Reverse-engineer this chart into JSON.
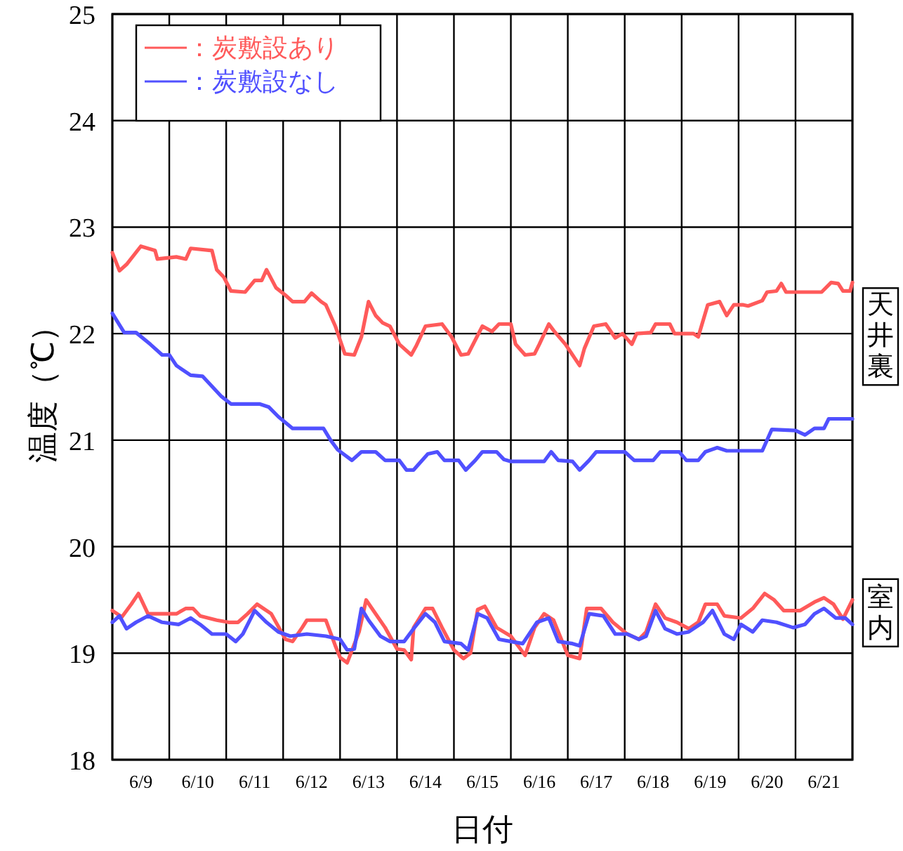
{
  "chart_data": {
    "type": "line",
    "ylabel": "温度（℃）",
    "xlabel": "日付",
    "xlim": [
      "--06-09",
      "--06-22"
    ],
    "ylim": [
      18,
      25
    ],
    "yticks": [
      18,
      19,
      20,
      21,
      22,
      23,
      24,
      25
    ],
    "xticks": [
      {
        "value": "--06-09",
        "label": null
      },
      {
        "value": "--06-10",
        "label": null
      },
      {
        "value": "--06-11",
        "label": null
      },
      {
        "value": "--06-12",
        "label": null
      },
      {
        "value": "--06-13",
        "label": null
      },
      {
        "value": "--06-14",
        "label": null
      },
      {
        "value": "--06-15",
        "label": null
      },
      {
        "value": "--06-16",
        "label": null
      },
      {
        "value": "--06-17",
        "label": null
      },
      {
        "value": "--06-18",
        "label": null
      },
      {
        "value": "--06-19",
        "label": null
      },
      {
        "value": "--06-20",
        "label": null
      },
      {
        "value": "--06-21",
        "label": null
      },
      {
        "value": "--06-22",
        "label": null
      },
      {
        "value": "--06-09T12:00",
        "label": "6/9"
      },
      {
        "value": "--06-10T12:00",
        "label": "6/10"
      },
      {
        "value": "--06-11T12:00",
        "label": "6/11"
      },
      {
        "value": "--06-12T12:00",
        "label": "6/12"
      },
      {
        "value": "--06-13T12:00",
        "label": "6/13"
      },
      {
        "value": "--06-14T12:00",
        "label": "6/14"
      },
      {
        "value": "--06-15T12:00",
        "label": "6/15"
      },
      {
        "value": "--06-16T12:00",
        "label": "6/16"
      },
      {
        "value": "--06-17T12:00",
        "label": "6/17"
      },
      {
        "value": "--06-18T12:00",
        "label": "6/18"
      },
      {
        "value": "--06-19T12:00",
        "label": "6/19"
      },
      {
        "value": "--06-20T12:00",
        "label": "6/20"
      },
      {
        "value": "--06-21T12:00",
        "label": "6/21"
      }
    ],
    "grid": true,
    "legend": "top left",
    "line_style": "solid",
    "marker": "none",
    "annotations": [
      "天井裏",
      "室内"
    ],
    "series": [
      {
        "name": "：炭敷設あり",
        "color": "#ff5a5a",
        "x": [
          "--06-09T00:00",
          "--06-09T03:00",
          "--06-09T06:00",
          "--06-09T12:00",
          "--06-09T18:00",
          "--06-09T19:00",
          "--06-10T03:00",
          "--06-10T07:00",
          "--06-10T09:00",
          "--06-10T18:00",
          "--06-10T20:00",
          "--06-10T23:00",
          "--06-11T02:00",
          "--06-11T08:00",
          "--06-11T12:00",
          "--06-11T15:00",
          "--06-11T17:00",
          "--06-11T21:00",
          "--06-12T01:00",
          "--06-12T04:00",
          "--06-12T09:00",
          "--06-12T12:00",
          "--06-12T16:00",
          "--06-12T18:00",
          "--06-12T22:00",
          "--06-13T02:00",
          "--06-13T06:00",
          "--06-13T09:00",
          "--06-13T12:00",
          "--06-13T15:00",
          "--06-13T18:00",
          "--06-13T21:00",
          "--06-14T01:00",
          "--06-14T06:00",
          "--06-14T08:00",
          "--06-14T12:00",
          "--06-14T19:00",
          "--06-14T23:00",
          "--06-15T03:00",
          "--06-15T06:00",
          "--06-15T12:00",
          "--06-15T16:00",
          "--06-15T19:00",
          "--06-16T00:00",
          "--06-16T02:00",
          "--06-16T06:00",
          "--06-16T10:00",
          "--06-16T12:00",
          "--06-16T16:00",
          "--06-16T18:00",
          "--06-16T23:00",
          "--06-17T02:00",
          "--06-17T05:00",
          "--06-17T07:00",
          "--06-17T11:00",
          "--06-17T16:00",
          "--06-17T20:00",
          "--06-17T23:00",
          "--06-18T03:00",
          "--06-18T05:00",
          "--06-18T11:00",
          "--06-18T13:00",
          "--06-18T19:00",
          "--06-18T21:00",
          "--06-19T05:00",
          "--06-19T07:00",
          "--06-19T11:00",
          "--06-19T16:00",
          "--06-19T19:00",
          "--06-19T22:00",
          "--06-20T02:00",
          "--06-20T04:00",
          "--06-20T10:00",
          "--06-20T12:00",
          "--06-20T16:00",
          "--06-20T18:00",
          "--06-20T20:00",
          "--06-21T11:00",
          "--06-21T15:00",
          "--06-21T18:00",
          "--06-21T20:00",
          "--06-21T23:00",
          "--06-22T00:00"
        ],
        "values": [
          22.76,
          22.59,
          22.65,
          22.82,
          22.78,
          22.7,
          22.72,
          22.7,
          22.8,
          22.78,
          22.6,
          22.53,
          22.4,
          22.39,
          22.5,
          22.5,
          22.6,
          22.43,
          22.36,
          22.3,
          22.3,
          22.38,
          22.3,
          22.27,
          22.07,
          21.81,
          21.8,
          21.97,
          22.3,
          22.17,
          22.1,
          22.07,
          21.9,
          21.8,
          21.88,
          22.07,
          22.09,
          21.97,
          21.8,
          21.81,
          22.07,
          22.02,
          22.09,
          22.09,
          21.9,
          21.8,
          21.81,
          21.9,
          22.09,
          22.03,
          21.9,
          21.8,
          21.7,
          21.86,
          22.07,
          22.09,
          21.96,
          22.0,
          21.9,
          22.0,
          22.01,
          22.09,
          22.09,
          22.0,
          22.0,
          21.97,
          22.27,
          22.3,
          22.17,
          22.27,
          22.27,
          22.26,
          22.31,
          22.39,
          22.4,
          22.47,
          22.39,
          22.39,
          22.48,
          22.47,
          22.4,
          22.4,
          22.48
        ]
      },
      {
        "name": "：炭敷設なし",
        "color": "#5050ff",
        "x": [
          "--06-09T00:00",
          "--06-09T05:00",
          "--06-09T10:00",
          "--06-09T16:00",
          "--06-09T21:00",
          "--06-10T00:00",
          "--06-10T03:00",
          "--06-10T09:00",
          "--06-10T14:00",
          "--06-10T22:00",
          "--06-11T02:00",
          "--06-11T14:00",
          "--06-11T18:00",
          "--06-11T22:00",
          "--06-12T04:00",
          "--06-12T17:00",
          "--06-12T20:00",
          "--06-12T23:00",
          "--06-13T05:00",
          "--06-13T09:00",
          "--06-13T15:00",
          "--06-13T19:00",
          "--06-14T01:00",
          "--06-14T04:00",
          "--06-14T07:00",
          "--06-14T13:00",
          "--06-14T17:00",
          "--06-14T20:00",
          "--06-15T02:00",
          "--06-15T05:00",
          "--06-15T09:00",
          "--06-15T12:00",
          "--06-15T18:00",
          "--06-15T21:00",
          "--06-16T00:00",
          "--06-16T14:00",
          "--06-16T17:00",
          "--06-16T20:00",
          "--06-17T02:00",
          "--06-17T05:00",
          "--06-17T09:00",
          "--06-17T12:00",
          "--06-18T00:00",
          "--06-18T04:00",
          "--06-18T12:00",
          "--06-18T15:00",
          "--06-18T23:00",
          "--06-19T02:00",
          "--06-19T07:00",
          "--06-19T10:00",
          "--06-19T15:00",
          "--06-19T19:00",
          "--06-20T10:00",
          "--06-20T14:00",
          "--06-21T00:00",
          "--06-21T04:00",
          "--06-21T08:00",
          "--06-21T12:00",
          "--06-21T14:00",
          "--06-22T00:00"
        ],
        "values": [
          22.19,
          22.01,
          22.01,
          21.9,
          21.8,
          21.8,
          21.7,
          21.61,
          21.6,
          21.41,
          21.34,
          21.34,
          21.31,
          21.22,
          21.11,
          21.11,
          21.0,
          20.91,
          20.81,
          20.89,
          20.89,
          20.81,
          20.81,
          20.72,
          20.72,
          20.87,
          20.89,
          20.81,
          20.81,
          20.72,
          20.81,
          20.89,
          20.89,
          20.82,
          20.8,
          20.8,
          20.89,
          20.81,
          20.8,
          20.72,
          20.81,
          20.89,
          20.89,
          20.81,
          20.81,
          20.89,
          20.89,
          20.81,
          20.81,
          20.89,
          20.93,
          20.9,
          20.9,
          21.1,
          21.09,
          21.05,
          21.11,
          21.11,
          21.2,
          21.2
        ]
      },
      {
        "color": "#ff5a5a",
        "x": [
          "--06-09T00:00",
          "--06-09T04:00",
          "--06-09T08:00",
          "--06-09T11:00",
          "--06-09T15:00",
          "--06-09T21:00",
          "--06-10T03:00",
          "--06-10T07:00",
          "--06-10T10:00",
          "--06-10T13:00",
          "--06-10T20:00",
          "--06-11T01:00",
          "--06-11T05:00",
          "--06-11T09:00",
          "--06-11T13:00",
          "--06-11T19:00",
          "--06-12T01:00",
          "--06-12T04:00",
          "--06-12T08:00",
          "--06-12T10:00",
          "--06-12T18:00",
          "--06-12T22:00",
          "--06-13T00:00",
          "--06-13T03:00",
          "--06-13T08:00",
          "--06-13T11:00",
          "--06-13T15:00",
          "--06-13T19:00",
          "--06-14T00:00",
          "--06-14T03:00",
          "--06-14T06:00",
          "--06-14T07:00",
          "--06-14T12:00",
          "--06-14T15:00",
          "--06-14T19:00",
          "--06-15T00:00",
          "--06-15T04:00",
          "--06-15T07:00",
          "--06-15T10:00",
          "--06-15T13:00",
          "--06-15T18:00",
          "--06-16T00:00",
          "--06-16T06:00",
          "--06-16T10:00",
          "--06-16T14:00",
          "--06-16T18:00",
          "--06-17T00:00",
          "--06-17T05:00",
          "--06-17T08:00",
          "--06-17T14:00",
          "--06-17T19:00",
          "--06-18T01:00",
          "--06-18T06:00",
          "--06-18T09:00",
          "--06-18T13:00",
          "--06-18T17:00",
          "--06-18T22:00",
          "--06-19T03:00",
          "--06-19T07:00",
          "--06-19T10:00",
          "--06-19T15:00",
          "--06-19T18:00",
          "--06-20T01:00",
          "--06-20T06:00",
          "--06-20T11:00",
          "--06-20T15:00",
          "--06-20T19:00",
          "--06-21T02:00",
          "--06-21T08:00",
          "--06-21T12:00",
          "--06-21T16:00",
          "--06-21T20:00",
          "--06-22T00:00"
        ],
        "values": [
          19.4,
          19.34,
          19.46,
          19.56,
          19.37,
          19.37,
          19.37,
          19.42,
          19.42,
          19.35,
          19.31,
          19.29,
          19.29,
          19.37,
          19.46,
          19.37,
          19.13,
          19.11,
          19.24,
          19.31,
          19.31,
          19.07,
          18.96,
          18.91,
          19.2,
          19.5,
          19.37,
          19.24,
          19.04,
          19.03,
          18.94,
          19.24,
          19.42,
          19.42,
          19.24,
          19.03,
          18.95,
          19.0,
          19.41,
          19.44,
          19.24,
          19.16,
          18.98,
          19.24,
          19.37,
          19.31,
          18.98,
          18.95,
          19.42,
          19.42,
          19.29,
          19.18,
          19.13,
          19.2,
          19.46,
          19.33,
          19.29,
          19.23,
          19.29,
          19.46,
          19.46,
          19.35,
          19.33,
          19.42,
          19.56,
          19.5,
          19.4,
          19.4,
          19.48,
          19.52,
          19.46,
          19.32,
          19.5
        ]
      },
      {
        "color": "#5050ff",
        "x": [
          "--06-09T00:00",
          "--06-09T03:00",
          "--06-09T06:00",
          "--06-09T10:00",
          "--06-09T15:00",
          "--06-09T21:00",
          "--06-10T04:00",
          "--06-10T09:00",
          "--06-10T13:00",
          "--06-10T18:00",
          "--06-11T00:00",
          "--06-11T04:00",
          "--06-11T07:00",
          "--06-11T12:00",
          "--06-11T17:00",
          "--06-11T22:00",
          "--06-12T03:00",
          "--06-12T10:00",
          "--06-12T18:00",
          "--06-13T00:00",
          "--06-13T03:00",
          "--06-13T06:00",
          "--06-13T09:00",
          "--06-13T12:00",
          "--06-13T17:00",
          "--06-13T21:00",
          "--06-14T03:00",
          "--06-14T07:00",
          "--06-14T12:00",
          "--06-14T16:00",
          "--06-14T20:00",
          "--06-15T03:00",
          "--06-15T06:00",
          "--06-15T10:00",
          "--06-15T14:00",
          "--06-15T19:00",
          "--06-16T00:00",
          "--06-16T05:00",
          "--06-16T11:00",
          "--06-16T16:00",
          "--06-16T20:00",
          "--06-17T02:00",
          "--06-17T05:00",
          "--06-17T09:00",
          "--06-17T15:00",
          "--06-17T20:00",
          "--06-18T01:00",
          "--06-18T06:00",
          "--06-18T09:00",
          "--06-18T13:00",
          "--06-18T17:00",
          "--06-18T22:00",
          "--06-19T03:00",
          "--06-19T09:00",
          "--06-19T13:00",
          "--06-19T18:00",
          "--06-19T22:00",
          "--06-20T01:00",
          "--06-20T06:00",
          "--06-20T10:00",
          "--06-20T16:00",
          "--06-20T23:00",
          "--06-21T04:00",
          "--06-21T08:00",
          "--06-21T12:00",
          "--06-21T17:00",
          "--06-21T21:00",
          "--06-22T00:00"
        ],
        "values": [
          19.29,
          19.35,
          19.23,
          19.29,
          19.35,
          19.29,
          19.27,
          19.33,
          19.27,
          19.18,
          19.18,
          19.11,
          19.18,
          19.4,
          19.29,
          19.2,
          19.16,
          19.18,
          19.16,
          19.13,
          19.03,
          19.04,
          19.42,
          19.31,
          19.16,
          19.11,
          19.11,
          19.23,
          19.37,
          19.29,
          19.11,
          19.09,
          19.03,
          19.37,
          19.33,
          19.13,
          19.11,
          19.09,
          19.29,
          19.33,
          19.11,
          19.09,
          19.07,
          19.37,
          19.35,
          19.18,
          19.18,
          19.13,
          19.16,
          19.4,
          19.23,
          19.18,
          19.2,
          19.29,
          19.4,
          19.18,
          19.13,
          19.27,
          19.2,
          19.31,
          19.29,
          19.24,
          19.27,
          19.37,
          19.42,
          19.33,
          19.33,
          19.27
        ]
      }
    ]
  }
}
